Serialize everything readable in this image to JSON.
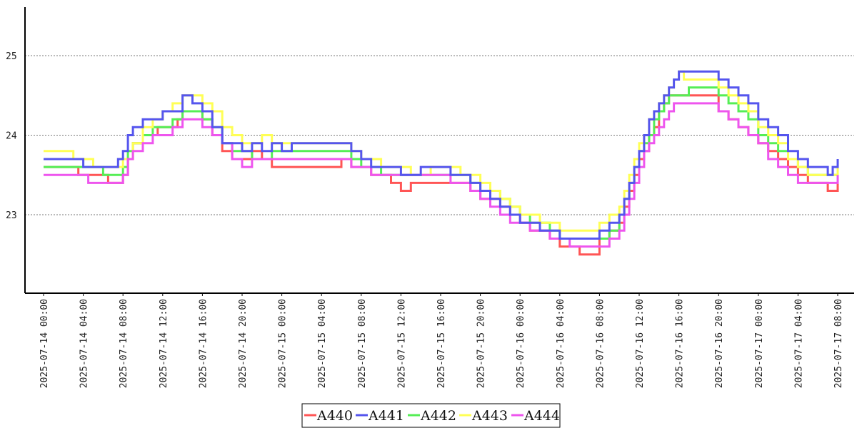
{
  "chart_data": {
    "type": "line",
    "title": "",
    "xlabel": "",
    "ylabel": "",
    "x_range": [
      "2025-07-14 00:00",
      "2025-07-17 08:00"
    ],
    "ylim": [
      22.0,
      25.6
    ],
    "y_ticks": [
      23,
      24,
      25
    ],
    "y_tick_labels": [
      "23",
      "24",
      "25"
    ],
    "x_tick_labels": [
      "2025-07-14 00:00",
      "2025-07-14 04:00",
      "2025-07-14 08:00",
      "2025-07-14 12:00",
      "2025-07-14 16:00",
      "2025-07-14 20:00",
      "2025-07-15 00:00",
      "2025-07-15 04:00",
      "2025-07-15 08:00",
      "2025-07-15 12:00",
      "2025-07-15 16:00",
      "2025-07-15 20:00",
      "2025-07-16 00:00",
      "2025-07-16 04:00",
      "2025-07-16 08:00",
      "2025-07-16 12:00",
      "2025-07-16 16:00",
      "2025-07-16 20:00",
      "2025-07-17 00:00",
      "2025-07-17 04:00",
      "2025-07-17 08:00"
    ],
    "grid": "horizontal dotted",
    "legend_position": "bottom-center",
    "series": [
      {
        "name": "A440",
        "color": "#ff5555",
        "x": [
          "2025-07-14 00:00",
          "2025-07-14 03:30",
          "2025-07-14 05:30",
          "2025-07-14 06:30",
          "2025-07-14 07:00",
          "2025-07-14 08:00",
          "2025-07-14 08:30",
          "2025-07-14 09:00",
          "2025-07-14 10:00",
          "2025-07-14 11:30",
          "2025-07-14 13:30",
          "2025-07-14 14:00",
          "2025-07-14 14:30",
          "2025-07-14 16:00",
          "2025-07-14 17:00",
          "2025-07-14 18:00",
          "2025-07-14 19:00",
          "2025-07-14 20:00",
          "2025-07-14 21:00",
          "2025-07-14 22:00",
          "2025-07-14 23:00",
          "2025-07-15 00:00",
          "2025-07-15 06:00",
          "2025-07-15 07:00",
          "2025-07-15 09:00",
          "2025-07-15 11:00",
          "2025-07-15 12:00",
          "2025-07-15 13:00",
          "2025-07-15 17:00",
          "2025-07-15 19:00",
          "2025-07-15 20:00",
          "2025-07-15 22:00",
          "2025-07-15 23:00",
          "2025-07-16 00:00",
          "2025-07-16 01:00",
          "2025-07-16 02:00",
          "2025-07-16 03:00",
          "2025-07-16 04:00",
          "2025-07-16 06:00",
          "2025-07-16 08:00",
          "2025-07-16 09:00",
          "2025-07-16 10:00",
          "2025-07-16 10:30",
          "2025-07-16 11:00",
          "2025-07-16 11:30",
          "2025-07-16 12:00",
          "2025-07-16 12:30",
          "2025-07-16 13:00",
          "2025-07-16 13:30",
          "2025-07-16 14:00",
          "2025-07-16 14:30",
          "2025-07-16 15:00",
          "2025-07-16 16:00",
          "2025-07-16 17:00",
          "2025-07-16 20:00",
          "2025-07-16 21:00",
          "2025-07-16 22:00",
          "2025-07-16 23:00",
          "2025-07-17 00:00",
          "2025-07-17 01:00",
          "2025-07-17 02:00",
          "2025-07-17 03:00",
          "2025-07-17 04:00",
          "2025-07-17 05:00",
          "2025-07-17 07:00",
          "2025-07-17 08:00"
        ],
        "y": [
          23.6,
          23.5,
          23.5,
          23.4,
          23.4,
          23.5,
          23.7,
          23.9,
          24.0,
          24.1,
          24.2,
          24.3,
          24.3,
          24.2,
          24.0,
          23.8,
          23.7,
          23.7,
          23.8,
          23.7,
          23.6,
          23.6,
          23.7,
          23.6,
          23.5,
          23.4,
          23.3,
          23.4,
          23.4,
          23.3,
          23.2,
          23.1,
          23.0,
          22.9,
          22.8,
          22.8,
          22.7,
          22.6,
          22.5,
          22.7,
          22.8,
          22.9,
          23.1,
          23.3,
          23.5,
          23.7,
          23.8,
          24.0,
          24.1,
          24.3,
          24.4,
          24.5,
          24.5,
          24.5,
          24.3,
          24.2,
          24.1,
          24.0,
          23.9,
          23.8,
          23.7,
          23.6,
          23.5,
          23.4,
          23.3,
          23.4
        ]
      },
      {
        "name": "A441",
        "color": "#5555ee",
        "x": [
          "2025-07-14 00:00",
          "2025-07-14 04:00",
          "2025-07-14 06:30",
          "2025-07-14 07:30",
          "2025-07-14 08:00",
          "2025-07-14 08:30",
          "2025-07-14 09:00",
          "2025-07-14 10:00",
          "2025-07-14 11:00",
          "2025-07-14 12:00",
          "2025-07-14 14:00",
          "2025-07-14 15:00",
          "2025-07-14 16:00",
          "2025-07-14 17:00",
          "2025-07-14 18:00",
          "2025-07-14 20:00",
          "2025-07-14 21:00",
          "2025-07-14 22:00",
          "2025-07-14 23:00",
          "2025-07-15 00:00",
          "2025-07-15 01:00",
          "2025-07-15 07:00",
          "2025-07-15 08:00",
          "2025-07-15 09:00",
          "2025-07-15 11:00",
          "2025-07-15 12:00",
          "2025-07-15 14:00",
          "2025-07-15 17:00",
          "2025-07-15 19:00",
          "2025-07-15 20:00",
          "2025-07-15 21:00",
          "2025-07-15 22:00",
          "2025-07-15 23:00",
          "2025-07-16 00:00",
          "2025-07-16 01:00",
          "2025-07-16 02:00",
          "2025-07-16 03:00",
          "2025-07-16 04:00",
          "2025-07-16 08:00",
          "2025-07-16 09:00",
          "2025-07-16 10:00",
          "2025-07-16 10:30",
          "2025-07-16 11:00",
          "2025-07-16 11:30",
          "2025-07-16 12:00",
          "2025-07-16 12:30",
          "2025-07-16 13:00",
          "2025-07-16 13:30",
          "2025-07-16 14:00",
          "2025-07-16 14:30",
          "2025-07-16 15:00",
          "2025-07-16 15:30",
          "2025-07-16 16:00",
          "2025-07-16 16:30",
          "2025-07-16 17:00",
          "2025-07-16 20:00",
          "2025-07-16 21:00",
          "2025-07-16 22:00",
          "2025-07-16 23:00",
          "2025-07-17 00:00",
          "2025-07-17 01:00",
          "2025-07-17 02:00",
          "2025-07-17 03:00",
          "2025-07-17 04:00",
          "2025-07-17 05:00",
          "2025-07-17 07:00",
          "2025-07-17 07:30",
          "2025-07-17 08:00"
        ],
        "y": [
          23.7,
          23.6,
          23.6,
          23.7,
          23.8,
          24.0,
          24.1,
          24.2,
          24.2,
          24.3,
          24.5,
          24.4,
          24.3,
          24.1,
          23.9,
          23.8,
          23.9,
          23.8,
          23.9,
          23.8,
          23.9,
          23.8,
          23.7,
          23.6,
          23.6,
          23.5,
          23.6,
          23.5,
          23.4,
          23.3,
          23.2,
          23.1,
          23.0,
          22.9,
          22.9,
          22.8,
          22.8,
          22.7,
          22.8,
          22.9,
          23.0,
          23.2,
          23.4,
          23.6,
          23.8,
          24.0,
          24.2,
          24.3,
          24.4,
          24.5,
          24.6,
          24.7,
          24.8,
          24.8,
          24.8,
          24.7,
          24.6,
          24.5,
          24.4,
          24.2,
          24.1,
          24.0,
          23.8,
          23.7,
          23.6,
          23.5,
          23.6,
          23.7
        ]
      },
      {
        "name": "A442",
        "color": "#55ee55",
        "x": [
          "2025-07-14 00:00",
          "2025-07-14 04:00",
          "2025-07-14 06:00",
          "2025-07-14 07:00",
          "2025-07-14 08:00",
          "2025-07-14 08:30",
          "2025-07-14 09:00",
          "2025-07-14 10:00",
          "2025-07-14 11:00",
          "2025-07-14 13:00",
          "2025-07-14 14:00",
          "2025-07-14 16:00",
          "2025-07-14 17:00",
          "2025-07-14 18:00",
          "2025-07-14 19:00",
          "2025-07-14 21:00",
          "2025-07-14 23:00",
          "2025-07-15 01:00",
          "2025-07-15 07:00",
          "2025-07-15 08:00",
          "2025-07-15 09:00",
          "2025-07-15 10:00",
          "2025-07-15 12:00",
          "2025-07-15 17:00",
          "2025-07-15 19:00",
          "2025-07-15 20:00",
          "2025-07-15 21:00",
          "2025-07-15 22:00",
          "2025-07-15 23:00",
          "2025-07-16 00:00",
          "2025-07-16 01:00",
          "2025-07-16 02:00",
          "2025-07-16 03:00",
          "2025-07-16 04:00",
          "2025-07-16 05:00",
          "2025-07-16 08:00",
          "2025-07-16 09:00",
          "2025-07-16 10:00",
          "2025-07-16 10:30",
          "2025-07-16 11:00",
          "2025-07-16 11:30",
          "2025-07-16 12:00",
          "2025-07-16 12:30",
          "2025-07-16 13:00",
          "2025-07-16 13:30",
          "2025-07-16 14:00",
          "2025-07-16 14:30",
          "2025-07-16 15:00",
          "2025-07-16 15:30",
          "2025-07-16 16:00",
          "2025-07-16 17:00",
          "2025-07-16 20:00",
          "2025-07-16 21:00",
          "2025-07-16 22:00",
          "2025-07-16 23:00",
          "2025-07-17 00:00",
          "2025-07-17 01:00",
          "2025-07-17 02:00",
          "2025-07-17 03:00",
          "2025-07-17 04:00",
          "2025-07-17 05:00",
          "2025-07-17 07:00",
          "2025-07-17 08:00"
        ],
        "y": [
          23.6,
          23.6,
          23.5,
          23.5,
          23.6,
          23.8,
          23.9,
          24.0,
          24.1,
          24.2,
          24.3,
          24.2,
          24.1,
          23.9,
          23.8,
          23.7,
          23.8,
          23.8,
          23.7,
          23.6,
          23.6,
          23.5,
          23.5,
          23.5,
          23.4,
          23.3,
          23.3,
          23.2,
          23.1,
          23.0,
          22.9,
          22.9,
          22.8,
          22.7,
          22.7,
          22.7,
          22.8,
          23.0,
          23.2,
          23.4,
          23.6,
          23.8,
          23.9,
          24.0,
          24.2,
          24.3,
          24.4,
          24.5,
          24.5,
          24.5,
          24.6,
          24.5,
          24.4,
          24.3,
          24.2,
          24.0,
          23.9,
          23.8,
          23.7,
          23.6,
          23.5,
          23.5,
          23.6
        ]
      },
      {
        "name": "A443",
        "color": "#ffff55",
        "x": [
          "2025-07-14 00:00",
          "2025-07-14 03:00",
          "2025-07-14 05:00",
          "2025-07-14 07:00",
          "2025-07-14 08:00",
          "2025-07-14 09:00",
          "2025-07-14 10:00",
          "2025-07-14 11:00",
          "2025-07-14 12:00",
          "2025-07-14 13:00",
          "2025-07-14 14:00",
          "2025-07-14 16:00",
          "2025-07-14 17:00",
          "2025-07-14 18:00",
          "2025-07-14 19:00",
          "2025-07-14 20:00",
          "2025-07-14 21:00",
          "2025-07-14 22:00",
          "2025-07-14 23:00",
          "2025-07-15 00:00",
          "2025-07-15 07:00",
          "2025-07-15 08:00",
          "2025-07-15 09:00",
          "2025-07-15 10:00",
          "2025-07-15 12:00",
          "2025-07-15 13:00",
          "2025-07-15 15:00",
          "2025-07-15 18:00",
          "2025-07-15 20:00",
          "2025-07-15 21:00",
          "2025-07-15 22:00",
          "2025-07-15 23:00",
          "2025-07-16 00:00",
          "2025-07-16 01:00",
          "2025-07-16 02:00",
          "2025-07-16 03:00",
          "2025-07-16 04:00",
          "2025-07-16 05:00",
          "2025-07-16 07:00",
          "2025-07-16 08:00",
          "2025-07-16 09:00",
          "2025-07-16 10:00",
          "2025-07-16 10:30",
          "2025-07-16 11:00",
          "2025-07-16 11:30",
          "2025-07-16 12:00",
          "2025-07-16 12:30",
          "2025-07-16 13:00",
          "2025-07-16 13:30",
          "2025-07-16 14:00",
          "2025-07-16 14:30",
          "2025-07-16 15:00",
          "2025-07-16 15:30",
          "2025-07-16 16:00",
          "2025-07-16 16:30",
          "2025-07-16 20:00",
          "2025-07-16 21:00",
          "2025-07-16 22:00",
          "2025-07-16 23:00",
          "2025-07-17 00:00",
          "2025-07-17 01:00",
          "2025-07-17 02:00",
          "2025-07-17 03:00",
          "2025-07-17 04:00",
          "2025-07-17 05:00",
          "2025-07-17 07:00",
          "2025-07-17 08:00"
        ],
        "y": [
          23.8,
          23.7,
          23.6,
          23.6,
          23.7,
          23.9,
          24.1,
          24.2,
          24.3,
          24.4,
          24.5,
          24.4,
          24.3,
          24.1,
          24.0,
          23.9,
          23.9,
          24.0,
          23.9,
          23.9,
          23.8,
          23.7,
          23.7,
          23.6,
          23.6,
          23.5,
          23.6,
          23.5,
          23.4,
          23.3,
          23.2,
          23.1,
          23.0,
          23.0,
          22.9,
          22.9,
          22.8,
          22.8,
          22.8,
          22.9,
          23.0,
          23.1,
          23.3,
          23.5,
          23.7,
          23.9,
          24.0,
          24.2,
          24.3,
          24.4,
          24.5,
          24.6,
          24.7,
          24.8,
          24.7,
          24.6,
          24.5,
          24.4,
          24.3,
          24.1,
          24.0,
          23.9,
          23.7,
          23.6,
          23.5,
          23.5,
          23.6
        ]
      },
      {
        "name": "A444",
        "color": "#ee55ee",
        "x": [
          "2025-07-14 00:00",
          "2025-07-14 04:30",
          "2025-07-14 08:00",
          "2025-07-14 08:30",
          "2025-07-14 09:00",
          "2025-07-14 10:00",
          "2025-07-14 11:00",
          "2025-07-14 13:00",
          "2025-07-14 14:00",
          "2025-07-14 16:00",
          "2025-07-14 17:00",
          "2025-07-14 18:00",
          "2025-07-14 19:00",
          "2025-07-14 20:00",
          "2025-07-14 21:00",
          "2025-07-14 22:00",
          "2025-07-15 07:00",
          "2025-07-15 08:00",
          "2025-07-15 09:00",
          "2025-07-15 14:00",
          "2025-07-15 17:00",
          "2025-07-15 19:00",
          "2025-07-15 20:00",
          "2025-07-15 21:00",
          "2025-07-15 22:00",
          "2025-07-15 23:00",
          "2025-07-16 00:00",
          "2025-07-16 01:00",
          "2025-07-16 02:00",
          "2025-07-16 03:00",
          "2025-07-16 05:00",
          "2025-07-16 08:00",
          "2025-07-16 09:00",
          "2025-07-16 10:00",
          "2025-07-16 10:30",
          "2025-07-16 11:00",
          "2025-07-16 11:30",
          "2025-07-16 12:00",
          "2025-07-16 12:30",
          "2025-07-16 13:00",
          "2025-07-16 13:30",
          "2025-07-16 14:00",
          "2025-07-16 14:30",
          "2025-07-16 15:00",
          "2025-07-16 15:30",
          "2025-07-16 16:00",
          "2025-07-16 16:30",
          "2025-07-16 20:00",
          "2025-07-16 21:00",
          "2025-07-16 22:00",
          "2025-07-16 23:00",
          "2025-07-17 00:00",
          "2025-07-17 01:00",
          "2025-07-17 02:00",
          "2025-07-17 03:00",
          "2025-07-17 04:00",
          "2025-07-17 05:00",
          "2025-07-17 07:00",
          "2025-07-17 08:00"
        ],
        "y": [
          23.5,
          23.4,
          23.5,
          23.7,
          23.8,
          23.9,
          24.0,
          24.1,
          24.2,
          24.1,
          24.0,
          23.9,
          23.7,
          23.6,
          23.7,
          23.7,
          23.6,
          23.6,
          23.5,
          23.5,
          23.4,
          23.3,
          23.2,
          23.1,
          23.0,
          22.9,
          22.9,
          22.8,
          22.8,
          22.7,
          22.6,
          22.6,
          22.7,
          22.8,
          23.0,
          23.2,
          23.4,
          23.6,
          23.8,
          23.9,
          24.0,
          24.1,
          24.2,
          24.3,
          24.4,
          24.4,
          24.4,
          24.3,
          24.2,
          24.1,
          24.0,
          23.9,
          23.7,
          23.6,
          23.5,
          23.4,
          23.4,
          23.4,
          23.5
        ]
      }
    ]
  }
}
